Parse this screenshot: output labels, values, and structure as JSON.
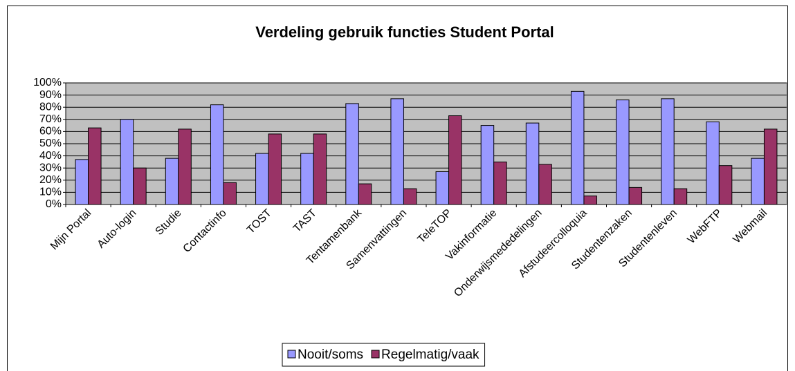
{
  "chart_data": {
    "type": "bar",
    "title": "Verdeling gebruik functies Student Portal",
    "categories": [
      "Mijn Portal",
      "Auto-login",
      "Studie",
      "Contactinfo",
      "TOST",
      "TAST",
      "Tentamenbank",
      "Samenvattingen",
      "TeleTOP",
      "Vakinformatie",
      "Onderwijsmededelingen",
      "Afstudeercolloquia",
      "Studentenzaken",
      "Studentenleven",
      "WebFTP",
      "Webmail"
    ],
    "series": [
      {
        "name": "Nooit/soms",
        "color": "#9999ff",
        "values": [
          37,
          70,
          38,
          82,
          42,
          42,
          83,
          87,
          27,
          65,
          67,
          93,
          86,
          87,
          68,
          38
        ]
      },
      {
        "name": "Regelmatig/vaak",
        "color": "#993366",
        "values": [
          63,
          30,
          62,
          18,
          58,
          58,
          17,
          13,
          73,
          35,
          33,
          7,
          14,
          13,
          32,
          62
        ]
      }
    ],
    "ylim": [
      0,
      100
    ],
    "yticks": [
      {
        "value": 0,
        "label": "0%"
      },
      {
        "value": 10,
        "label": "10%"
      },
      {
        "value": 20,
        "label": "20%"
      },
      {
        "value": 30,
        "label": "30%"
      },
      {
        "value": 40,
        "label": "40%"
      },
      {
        "value": 50,
        "label": "50%"
      },
      {
        "value": 60,
        "label": "60%"
      },
      {
        "value": 70,
        "label": "70%"
      },
      {
        "value": 80,
        "label": "80%"
      },
      {
        "value": 90,
        "label": "90%"
      },
      {
        "value": 100,
        "label": "100%"
      }
    ],
    "grid": true,
    "legend": "bottom"
  }
}
